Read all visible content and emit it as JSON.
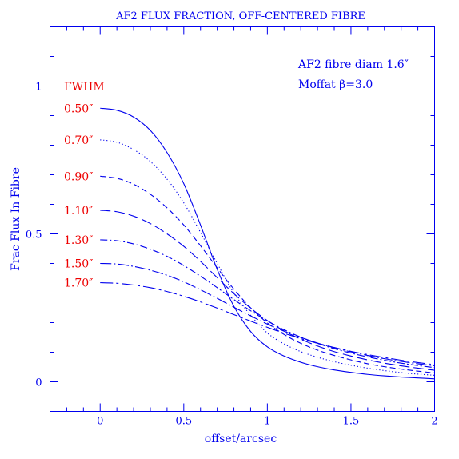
{
  "colors": {
    "axis": "#0000ee",
    "annotation": "#ee0000",
    "background": "#ffffff"
  },
  "chart_data": {
    "type": "line",
    "title": "AF2 FLUX FRACTION, OFF-CENTERED FIBRE",
    "xlabel": "offset/arcsec",
    "ylabel": "Frac Flux In Fibre",
    "xlim": [
      -0.3,
      2.0
    ],
    "ylim": [
      -0.1,
      1.2
    ],
    "xticks": [
      {
        "value": 0,
        "label": "0"
      },
      {
        "value": 0.5,
        "label": "0.5"
      },
      {
        "value": 1,
        "label": "1"
      },
      {
        "value": 1.5,
        "label": "1.5"
      },
      {
        "value": 2,
        "label": "2"
      }
    ],
    "yticks": [
      {
        "value": 0,
        "label": "0"
      },
      {
        "value": 0.5,
        "label": "0.5"
      },
      {
        "value": 1,
        "label": "1"
      }
    ],
    "grid": false,
    "annotations": [
      "AF2 fibre diam 1.6″",
      "Moffat β=3.0"
    ],
    "legend_title": "FWHM",
    "x": [
      0,
      0.1,
      0.2,
      0.3,
      0.4,
      0.5,
      0.6,
      0.7,
      0.8,
      0.9,
      1.0,
      1.1,
      1.2,
      1.3,
      1.4,
      1.5,
      1.6,
      1.7,
      1.8,
      1.9,
      2.0
    ],
    "series": [
      {
        "name": "0.50″",
        "dash": "solid",
        "values": [
          0.925,
          0.918,
          0.895,
          0.85,
          0.775,
          0.67,
          0.53,
          0.38,
          0.255,
          0.17,
          0.118,
          0.087,
          0.066,
          0.051,
          0.04,
          0.032,
          0.025,
          0.02,
          0.016,
          0.013,
          0.01
        ]
      },
      {
        "name": "0.70″",
        "dash": "dotted",
        "values": [
          0.818,
          0.81,
          0.785,
          0.745,
          0.685,
          0.605,
          0.505,
          0.4,
          0.3,
          0.225,
          0.165,
          0.128,
          0.102,
          0.083,
          0.068,
          0.056,
          0.046,
          0.038,
          0.031,
          0.026,
          0.022
        ]
      },
      {
        "name": "0.90″",
        "dash": "dashed",
        "values": [
          0.695,
          0.688,
          0.668,
          0.634,
          0.588,
          0.53,
          0.46,
          0.385,
          0.313,
          0.25,
          0.199,
          0.16,
          0.13,
          0.107,
          0.089,
          0.074,
          0.061,
          0.051,
          0.043,
          0.036,
          0.03
        ]
      },
      {
        "name": "1.10″",
        "dash": "long-dashed",
        "values": [
          0.58,
          0.575,
          0.56,
          0.535,
          0.5,
          0.458,
          0.407,
          0.352,
          0.298,
          0.249,
          0.207,
          0.172,
          0.144,
          0.121,
          0.102,
          0.087,
          0.074,
          0.063,
          0.054,
          0.046,
          0.039
        ]
      },
      {
        "name": "1.30″",
        "dash": "dash-dot",
        "values": [
          0.48,
          0.477,
          0.466,
          0.448,
          0.424,
          0.393,
          0.357,
          0.318,
          0.278,
          0.24,
          0.206,
          0.176,
          0.151,
          0.13,
          0.112,
          0.097,
          0.084,
          0.073,
          0.063,
          0.055,
          0.048
        ]
      },
      {
        "name": "1.50″",
        "dash": "long-dash-dot",
        "values": [
          0.4,
          0.398,
          0.39,
          0.377,
          0.36,
          0.338,
          0.311,
          0.282,
          0.252,
          0.223,
          0.195,
          0.171,
          0.15,
          0.131,
          0.115,
          0.101,
          0.089,
          0.078,
          0.069,
          0.061,
          0.054
        ]
      },
      {
        "name": "1.70″",
        "dash": "long-dash-dot-2",
        "values": [
          0.335,
          0.333,
          0.327,
          0.318,
          0.305,
          0.289,
          0.27,
          0.249,
          0.227,
          0.205,
          0.184,
          0.164,
          0.146,
          0.13,
          0.116,
          0.103,
          0.092,
          0.082,
          0.073,
          0.065,
          0.058
        ]
      }
    ]
  }
}
